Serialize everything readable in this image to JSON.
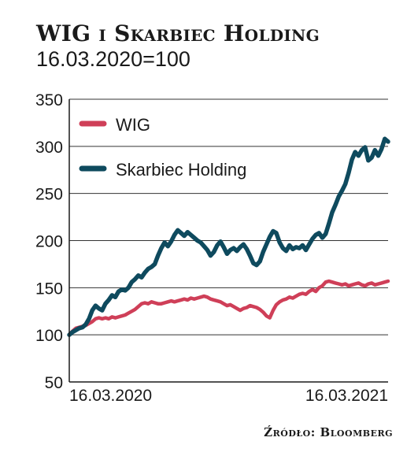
{
  "title": "WIG i Skarbiec Holding",
  "subtitle": "16.03.2020=100",
  "source": "Źródło: Bloomberg",
  "chart_data": {
    "type": "line",
    "ylim": [
      50,
      350
    ],
    "y_ticks": [
      50,
      100,
      150,
      200,
      250,
      300,
      350
    ],
    "x_labels": [
      "16.03.2020",
      "16.03.2021"
    ],
    "legend_placement": "top-left",
    "grid": "horizontal",
    "series": [
      {
        "name": "WIG",
        "color": "#cf3f58",
        "values": [
          100,
          104,
          107,
          108,
          109,
          110,
          112,
          114,
          117,
          118,
          117,
          118,
          117,
          119,
          118,
          119,
          120,
          121,
          123,
          125,
          127,
          130,
          133,
          134,
          133,
          135,
          134,
          133,
          133,
          134,
          135,
          136,
          135,
          136,
          137,
          138,
          137,
          139,
          138,
          139,
          140,
          141,
          140,
          138,
          137,
          136,
          135,
          133,
          131,
          132,
          130,
          128,
          126,
          128,
          129,
          131,
          130,
          129,
          127,
          124,
          120,
          118,
          126,
          132,
          135,
          137,
          138,
          140,
          139,
          141,
          143,
          144,
          143,
          146,
          148,
          146,
          150,
          152,
          156,
          157,
          156,
          155,
          154,
          153,
          154,
          152,
          153,
          154,
          155,
          153,
          152,
          154,
          155,
          153,
          154,
          155,
          156,
          157
        ]
      },
      {
        "name": "Skarbiec Holding",
        "color": "#0e4a5e",
        "values": [
          100,
          103,
          105,
          107,
          108,
          111,
          117,
          126,
          131,
          128,
          126,
          133,
          137,
          142,
          140,
          146,
          148,
          147,
          150,
          156,
          159,
          163,
          161,
          166,
          170,
          172,
          175,
          184,
          192,
          198,
          194,
          199,
          206,
          211,
          208,
          205,
          209,
          206,
          203,
          200,
          198,
          194,
          190,
          184,
          188,
          195,
          199,
          193,
          186,
          190,
          192,
          189,
          193,
          196,
          191,
          184,
          176,
          174,
          178,
          188,
          196,
          204,
          210,
          208,
          198,
          192,
          189,
          195,
          191,
          193,
          192,
          195,
          190,
          196,
          202,
          206,
          208,
          203,
          207,
          218,
          230,
          238,
          247,
          253,
          260,
          272,
          286,
          294,
          290,
          296,
          299,
          285,
          288,
          296,
          290,
          297,
          308,
          305
        ]
      }
    ]
  }
}
